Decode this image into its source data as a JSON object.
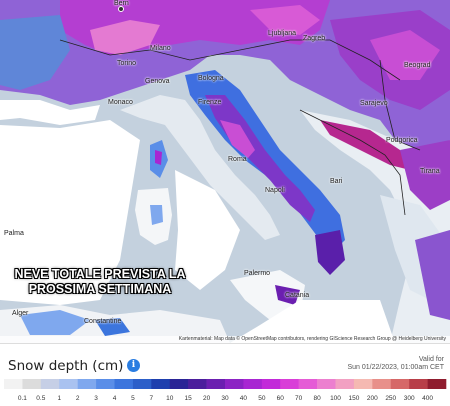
{
  "headline_line1": "NEVE TOTALE PREVISTA LA",
  "headline_line2": "PROSSIMA SETTIMANA",
  "attribution": "Kartenmaterial: Map data © OpenStreetMap contributors, rendering GIScience Research Group @ Heidelberg University",
  "legend": {
    "title": "Snow depth (cm)",
    "info_icon": "i",
    "valid_for": "Valid for",
    "valid_time": "Sun 01/22/2023, 01:00am CET",
    "ticks": [
      "0.1",
      "0.5",
      "1",
      "2",
      "3",
      "4",
      "5",
      "7",
      "10",
      "15",
      "20",
      "30",
      "40",
      "50",
      "60",
      "70",
      "80",
      "100",
      "150",
      "200",
      "250",
      "300",
      "400"
    ],
    "colors": [
      "#f2f2f2",
      "#dcdcdc",
      "#c6cfe6",
      "#a9c2f0",
      "#7fa8ee",
      "#5a8ee8",
      "#3c75dd",
      "#2c5fc9",
      "#1e3fae",
      "#2a2496",
      "#4b1e9c",
      "#6b1fb0",
      "#8c23c4",
      "#a826d2",
      "#c22ad9",
      "#d93ed8",
      "#e55bd6",
      "#ec7fcf",
      "#f2a0c2",
      "#f5b9b2",
      "#e8908a",
      "#d66868",
      "#b83e48",
      "#8f1c2e"
    ]
  },
  "cities": [
    {
      "name": "Bern"
    },
    {
      "name": "Ljubljana"
    },
    {
      "name": "Zagreb"
    },
    {
      "name": "Milano"
    },
    {
      "name": "Torino"
    },
    {
      "name": "Genova"
    },
    {
      "name": "Bologna"
    },
    {
      "name": "Monaco"
    },
    {
      "name": "Firenze"
    },
    {
      "name": "Sarajevo"
    },
    {
      "name": "Beograd"
    },
    {
      "name": "Podgorica"
    },
    {
      "name": "Roma"
    },
    {
      "name": "Bari"
    },
    {
      "name": "Napoli"
    },
    {
      "name": "Tirana"
    },
    {
      "name": "Palermo"
    },
    {
      "name": "Catania"
    },
    {
      "name": "Constantine"
    },
    {
      "name": "Alger"
    },
    {
      "name": "Palma"
    }
  ]
}
